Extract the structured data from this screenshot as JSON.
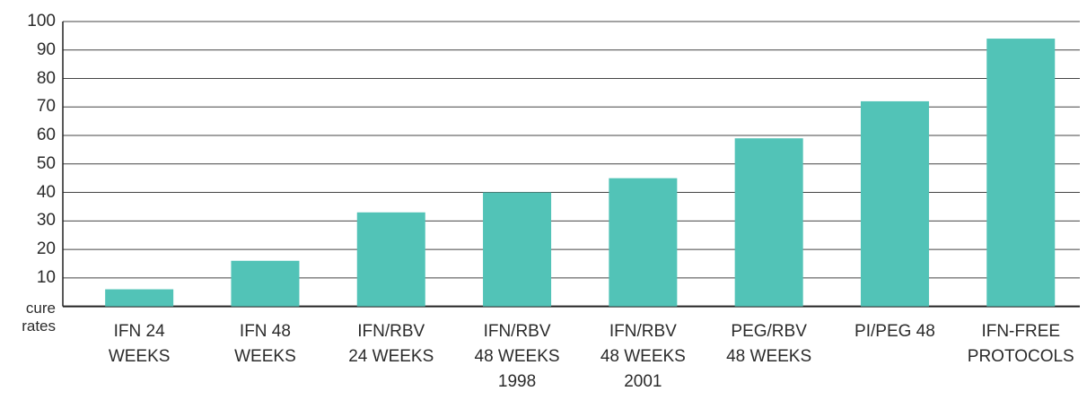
{
  "chart_data": {
    "type": "bar",
    "categories": [
      "IFN 24\nWEEKS",
      "IFN 48\nWEEKS",
      "IFN/RBV\n24 WEEKS",
      "IFN/RBV\n48 WEEKS\n1998",
      "IFN/RBV\n48 WEEKS\n2001",
      "PEG/RBV\n48 WEEKS",
      "PI/PEG 48",
      "IFN-FREE\nPROTOCOLS"
    ],
    "values": [
      6,
      16,
      33,
      40,
      45,
      59,
      72,
      94
    ],
    "color": "#52c3b7",
    "ylim": [
      0,
      100
    ],
    "yticks": [
      {
        "value": 0,
        "label": "cure\nrates"
      },
      10,
      20,
      30,
      40,
      50,
      60,
      70,
      80,
      90,
      100
    ],
    "grid": true
  }
}
